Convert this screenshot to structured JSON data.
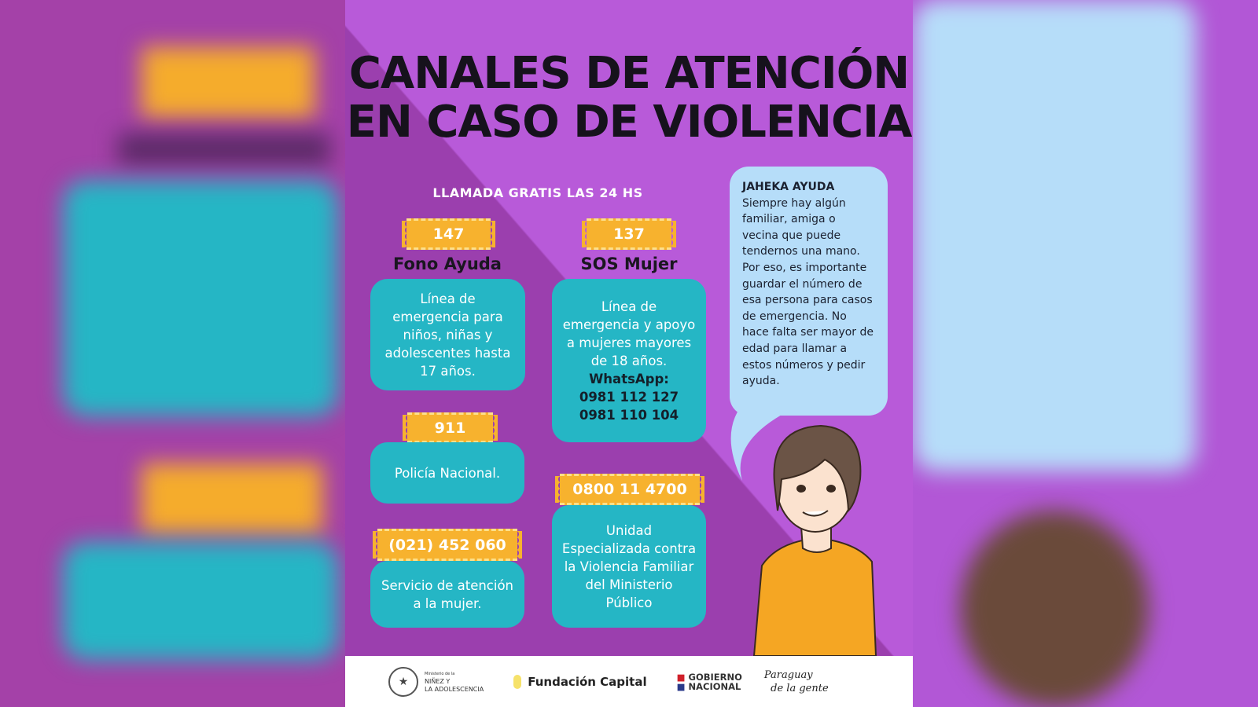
{
  "title": {
    "line1": "CANALES DE ATENCIÓN",
    "line2": "EN CASO DE VIOLENCIA"
  },
  "subtitle": "LLAMADA GRATIS LAS 24 HS",
  "channels": [
    {
      "number": "147",
      "name": "Fono Ayuda",
      "description": "Línea de emergencia para niños, niñas y adolescentes hasta 17 años."
    },
    {
      "number": "137",
      "name": "SOS Mujer",
      "description": "Línea de emergencia y apoyo a mujeres mayores de 18 años.",
      "whatsapp_label": "WhatsApp:",
      "whatsapp_numbers": [
        "0981 112 127",
        "0981 110 104"
      ]
    },
    {
      "number": "911",
      "description": "Policía Nacional."
    },
    {
      "number": "0800 11 4700",
      "description": "Unidad Especializada contra la Violencia Familiar del Ministerio Público"
    },
    {
      "number": "(021) 452 060",
      "description": "Servicio de atención a la mujer."
    }
  ],
  "bubble": {
    "heading": "JAHEKA AYUDA",
    "text": "Siempre hay algún familiar, amiga o vecina que puede tendernos una mano. Por eso, es importante guardar el número de esa persona para casos de emergencia. No hace falta ser mayor de edad para llamar a estos números y pedir ayuda."
  },
  "footer": {
    "ministry_small": "Ministerio de la",
    "ministry_line1": "NIÑEZ Y",
    "ministry_line2": "LA ADOLESCENCIA",
    "fundacion": "Fundación Capital",
    "gobierno_line1": "GOBIERNO",
    "gobierno_line2": "NACIONAL",
    "paraguay_logo": "Paraguay de la gente"
  },
  "colors": {
    "purple": "#b85ad9",
    "dark_purple": "#9b3fae",
    "teal": "#25b6c5",
    "orange": "#f7b22e",
    "bubble": "#b6ddf9"
  }
}
